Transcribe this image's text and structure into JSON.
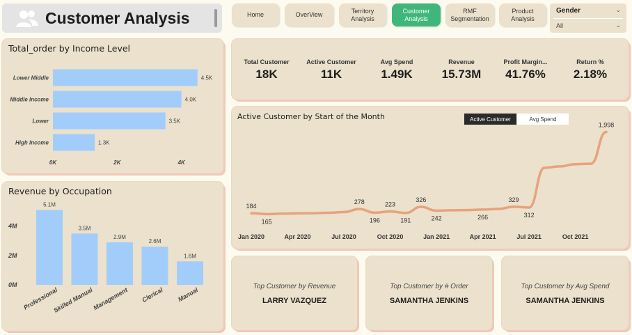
{
  "header": {
    "title": "Customer Analysis",
    "icon": "users-icon"
  },
  "nav": [
    {
      "label": "Home",
      "active": false
    },
    {
      "label": "OverView",
      "active": false
    },
    {
      "label": "Territory Analysis",
      "active": false
    },
    {
      "label": "Customer Analysis",
      "active": true
    },
    {
      "label": "RMF Segmentation",
      "active": false
    },
    {
      "label": "Product Analysis",
      "active": false
    }
  ],
  "slicer": {
    "label": "Gender",
    "value": "All"
  },
  "kpis": [
    {
      "label": "Total Customer",
      "value": "18K"
    },
    {
      "label": "Active Customer",
      "value": "11K"
    },
    {
      "label": "Avg Spend",
      "value": "1.49K"
    },
    {
      "label": "Revenue",
      "value": "15.73M"
    },
    {
      "label": "Profit Margin...",
      "value": "41.76%"
    },
    {
      "label": "Return %",
      "value": "2.18%"
    }
  ],
  "income_chart": {
    "title": "Total_order by Income Level",
    "chart_data": {
      "type": "bar",
      "orientation": "horizontal",
      "categories": [
        "Lower Middle",
        "Middle Income",
        "Lower",
        "High Income"
      ],
      "values": [
        4.5,
        4.0,
        3.5,
        1.3
      ],
      "value_labels": [
        "4.5K",
        "4.0K",
        "3.5K",
        "1.3K"
      ],
      "xticks": [
        "0K",
        "2K",
        "4K"
      ],
      "xlim": [
        0,
        4.7
      ],
      "color": "#a2cdfa"
    }
  },
  "occupation_chart": {
    "title": "Revenue by Occupation",
    "chart_data": {
      "type": "bar",
      "categories": [
        "Professional",
        "Skilled Manual",
        "Management",
        "Clerical",
        "Manual"
      ],
      "values": [
        5.1,
        3.5,
        2.9,
        2.6,
        1.6
      ],
      "value_labels": [
        "5.1M",
        "3.5M",
        "2.9M",
        "2.6M",
        "1.6M"
      ],
      "yticks": [
        "0M",
        "2M",
        "4M"
      ],
      "ylim": [
        0,
        5.6
      ],
      "color": "#a2cdfa"
    }
  },
  "active_chart": {
    "title": "Active Customer by Start of the Month",
    "toggle_on": "Active Customer",
    "toggle_off": "Avg Spend",
    "chart_data": {
      "type": "line",
      "x": [
        "Jan 2020",
        "Feb 2020",
        "Mar 2020",
        "Apr 2020",
        "May 2020",
        "Jun 2020",
        "Jul 2020",
        "Aug 2020",
        "Sep 2020",
        "Oct 2020",
        "Nov 2020",
        "Dec 2020",
        "Jan 2021",
        "Feb 2021",
        "Mar 2021",
        "Apr 2021",
        "May 2021",
        "Jun 2021",
        "Jul 2021",
        "Aug 2021",
        "Sep 2021",
        "Oct 2021",
        "Nov 2021",
        "Dec 2021"
      ],
      "values": [
        184,
        165,
        175,
        180,
        185,
        195,
        210,
        278,
        196,
        223,
        191,
        326,
        242,
        250,
        255,
        266,
        280,
        329,
        312,
        1200,
        1230,
        1280,
        1290,
        1998
      ],
      "point_labels": {
        "0": "184",
        "1": "165",
        "7": "278",
        "8": "196",
        "9": "223",
        "10": "191",
        "11": "326",
        "12": "242",
        "15": "266",
        "17": "329",
        "18": "312",
        "23": "1,998"
      },
      "xticks": [
        "Jan 2020",
        "Apr 2020",
        "Jul 2020",
        "Oct 2020",
        "Jan 2021",
        "Apr 2021",
        "Jul 2021",
        "Oct 2021"
      ],
      "ylim": [
        0,
        2100
      ],
      "color": "#e8a27d"
    }
  },
  "top_cards": [
    {
      "label": "Top Customer by Revenue",
      "value": "LARRY VAZQUEZ"
    },
    {
      "label": "Top Customer by # Order",
      "value": "SAMANTHA JENKINS"
    },
    {
      "label": "Top Customer by Avg Spend",
      "value": "SAMANTHA JENKINS"
    }
  ]
}
